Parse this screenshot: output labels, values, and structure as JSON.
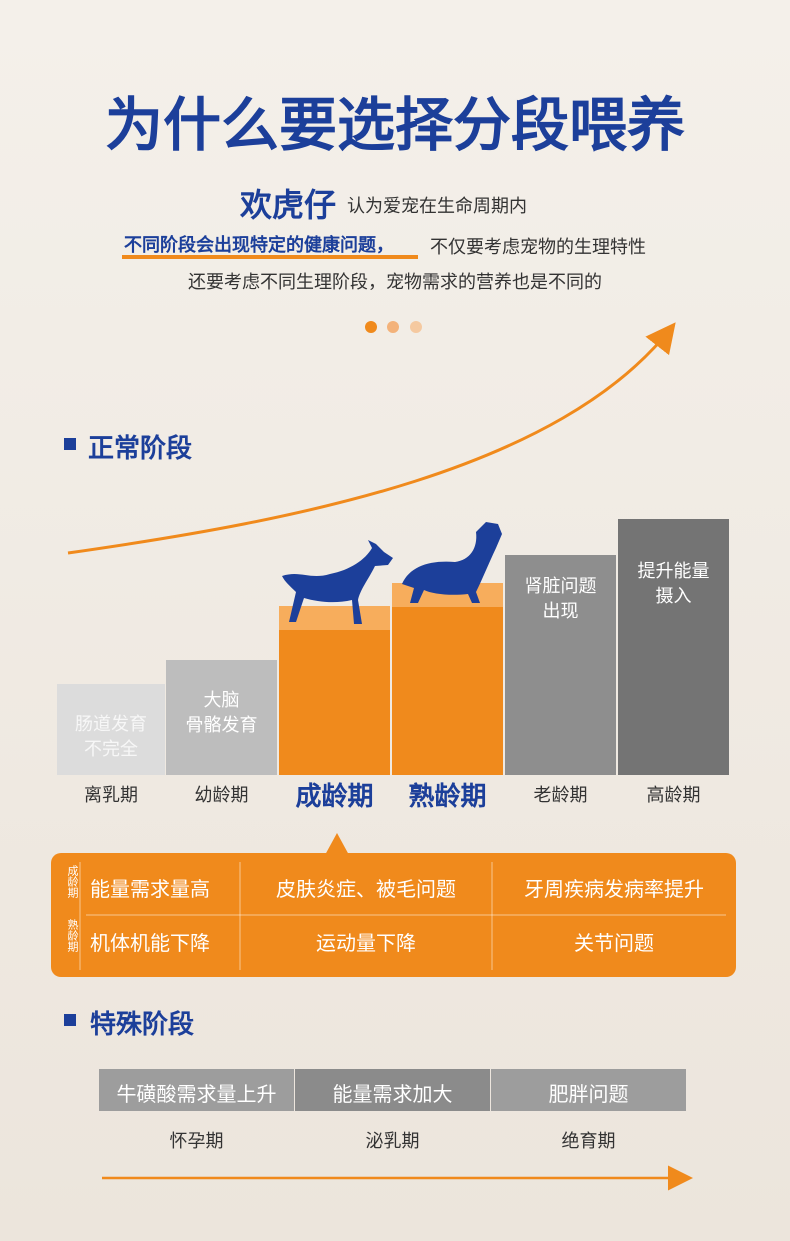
{
  "title": "为什么要选择分段喂养",
  "intro": {
    "brand": "欢虎仔",
    "line1": "认为爱宠在生命周期内",
    "highlight": "不同阶段会出现特定的健康问题，",
    "line2": "不仅要考虑宠物的生理特性",
    "line3": "还要考虑不同生理阶段，宠物需求的营养也是不同的"
  },
  "normal": {
    "heading": "正常阶段",
    "stages": [
      {
        "label": "离乳期",
        "note": [
          "肠道发育",
          "不完全"
        ]
      },
      {
        "label": "幼龄期",
        "note": [
          "大脑",
          "骨骼发育"
        ]
      },
      {
        "label": "成龄期",
        "note": []
      },
      {
        "label": "熟龄期",
        "note": []
      },
      {
        "label": "老龄期",
        "note": [
          "肾脏问题",
          "出现"
        ]
      },
      {
        "label": "高龄期",
        "note": [
          "提升能量",
          "摄入"
        ]
      }
    ]
  },
  "panel": {
    "rows": [
      {
        "label": "成龄期",
        "cells": [
          "能量需求量高",
          "皮肤炎症、被毛问题",
          "牙周疾病发病率提升"
        ]
      },
      {
        "label": "熟龄期",
        "cells": [
          "机体机能下降",
          "运动量下降",
          "关节问题"
        ]
      }
    ]
  },
  "special": {
    "heading": "特殊阶段",
    "items": [
      {
        "need": "牛磺酸需求量上升",
        "stage": "怀孕期"
      },
      {
        "need": "能量需求加大",
        "stage": "泌乳期"
      },
      {
        "need": "肥胖问题",
        "stage": "绝育期"
      }
    ]
  }
}
